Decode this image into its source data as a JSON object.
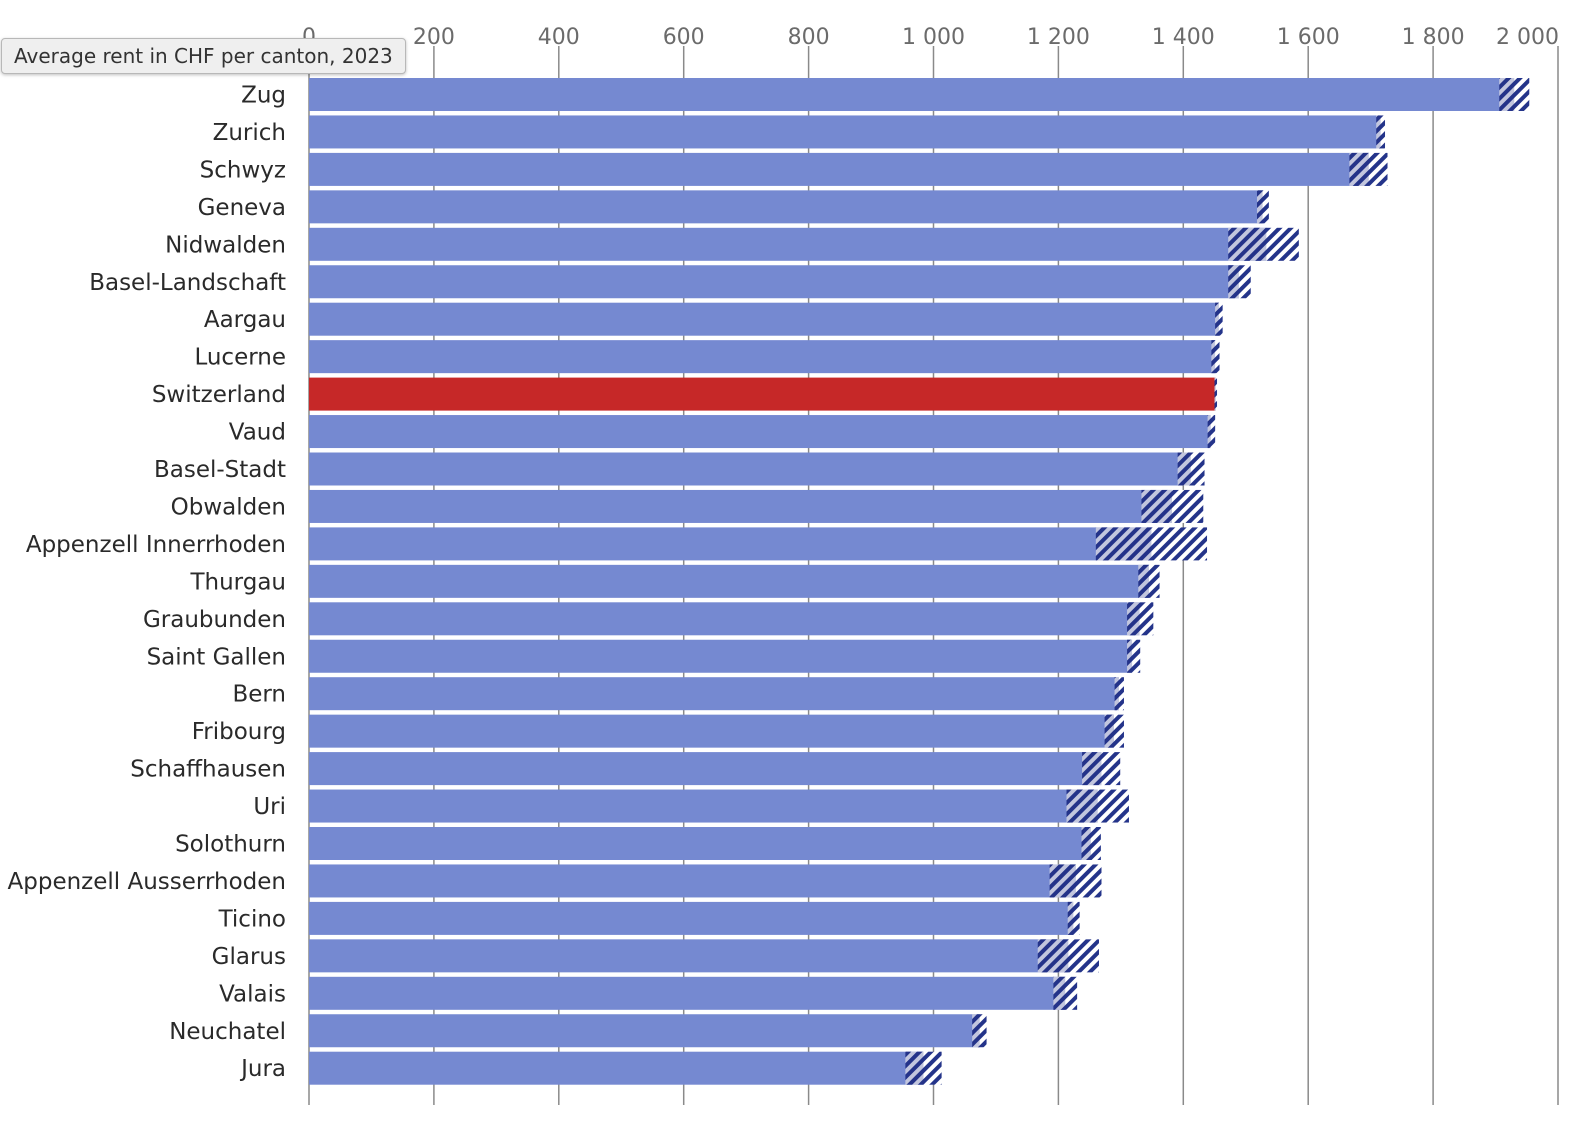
{
  "tooltip": "Average rent in CHF per canton, 2023",
  "colors": {
    "bar": "#7589d1",
    "highlight": "#c62828",
    "interval": "#24348a",
    "grid": "#8a8a8a"
  },
  "chart_data": {
    "type": "bar",
    "orientation": "horizontal",
    "title": "Average rent in CHF per canton, 2023",
    "xlim": [
      0,
      2000
    ],
    "x_ticks": [
      0,
      200,
      400,
      600,
      800,
      1000,
      1200,
      1400,
      1600,
      1800,
      2000
    ],
    "x_tick_labels": [
      "0",
      "200",
      "400",
      "600",
      "800",
      "1 000",
      "1 200",
      "1 400",
      "1 600",
      "1 800",
      "2 000"
    ],
    "highlight_category": "Switzerland",
    "categories": [
      "Zug",
      "Zurich",
      "Schwyz",
      "Geneva",
      "Nidwalden",
      "Basel-Landschaft",
      "Aargau",
      "Lucerne",
      "Switzerland",
      "Vaud",
      "Basel-Stadt",
      "Obwalden",
      "Appenzell Innerrhoden",
      "Thurgau",
      "Graubunden",
      "Saint Gallen",
      "Bern",
      "Fribourg",
      "Schaffhausen",
      "Uri",
      "Solothurn",
      "Appenzell Ausserrhoden",
      "Ticino",
      "Glarus",
      "Valais",
      "Neuchatel",
      "Jura"
    ],
    "values": [
      1930,
      1716,
      1697,
      1527,
      1533,
      1489,
      1457,
      1451,
      1452,
      1444,
      1412,
      1382,
      1349,
      1345,
      1330,
      1318,
      1297,
      1289,
      1269,
      1263,
      1252,
      1228,
      1224,
      1216,
      1211,
      1074,
      984
    ],
    "interval_low": [
      1906,
      1709,
      1666,
      1518,
      1472,
      1472,
      1451,
      1445,
      1450,
      1439,
      1391,
      1333,
      1260,
      1328,
      1310,
      1310,
      1290,
      1274,
      1238,
      1213,
      1237,
      1186,
      1215,
      1167,
      1192,
      1062,
      955
    ],
    "interval_high": [
      1954,
      1723,
      1727,
      1537,
      1585,
      1508,
      1463,
      1458,
      1454,
      1451,
      1434,
      1432,
      1438,
      1362,
      1352,
      1331,
      1305,
      1305,
      1299,
      1313,
      1268,
      1269,
      1234,
      1265,
      1230,
      1085,
      1013
    ]
  }
}
